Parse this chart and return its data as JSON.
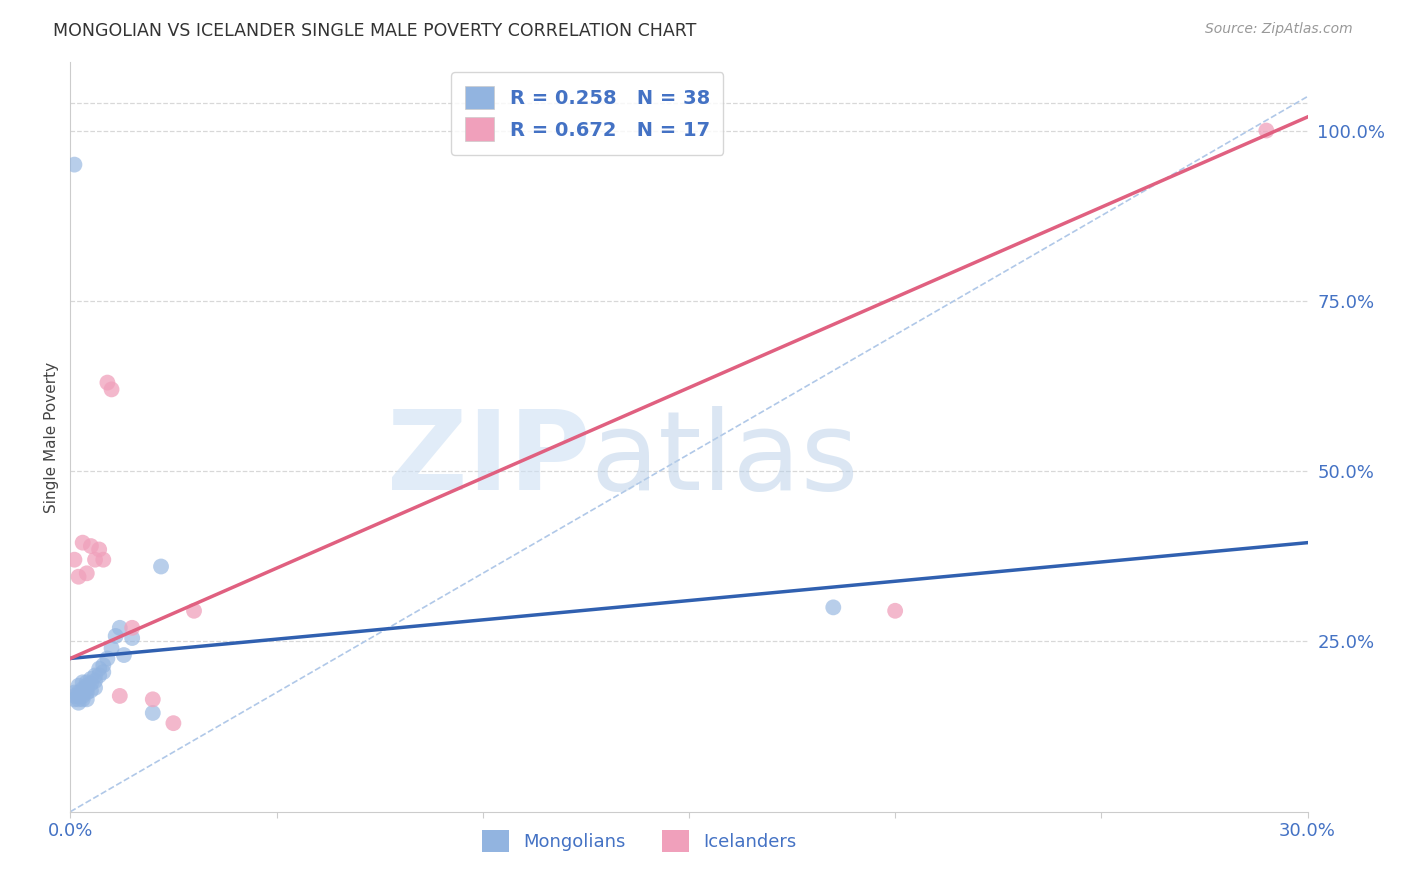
{
  "title": "MONGOLIAN VS ICELANDER SINGLE MALE POVERTY CORRELATION CHART",
  "source": "Source: ZipAtlas.com",
  "label_color": "#4472c4",
  "ylabel": "Single Male Poverty",
  "xlim": [
    0.0,
    0.3
  ],
  "ylim": [
    0.0,
    1.05
  ],
  "x_tick_pos": [
    0.0,
    0.05,
    0.1,
    0.15,
    0.2,
    0.25,
    0.3
  ],
  "x_tick_labels": [
    "0.0%",
    "",
    "",
    "",
    "",
    "",
    "30.0%"
  ],
  "y_ticks_right": [
    0.25,
    0.5,
    0.75,
    1.0
  ],
  "y_tick_labels_right": [
    "25.0%",
    "50.0%",
    "75.0%",
    "100.0%"
  ],
  "mongolian_color": "#92b4e0",
  "icelander_color": "#f0a0bb",
  "mongolian_line_color": "#3060b0",
  "icelander_line_color": "#e06080",
  "ref_line_color": "#b0c8e8",
  "grid_color": "#d8d8d8",
  "legend_R_mongolian": "0.258",
  "legend_N_mongolian": "38",
  "legend_R_icelander": "0.672",
  "legend_N_icelander": "17",
  "watermark_zip": "ZIP",
  "watermark_atlas": "atlas",
  "mongo_x": [
    0.001,
    0.001,
    0.001,
    0.002,
    0.002,
    0.002,
    0.002,
    0.002,
    0.003,
    0.003,
    0.003,
    0.003,
    0.003,
    0.004,
    0.004,
    0.004,
    0.004,
    0.004,
    0.005,
    0.005,
    0.005,
    0.006,
    0.006,
    0.006,
    0.007,
    0.007,
    0.008,
    0.008,
    0.009,
    0.01,
    0.011,
    0.012,
    0.013,
    0.015,
    0.02,
    0.022,
    0.185,
    0.001
  ],
  "mongo_y": [
    0.175,
    0.17,
    0.165,
    0.185,
    0.175,
    0.17,
    0.165,
    0.16,
    0.19,
    0.18,
    0.175,
    0.17,
    0.165,
    0.19,
    0.185,
    0.18,
    0.175,
    0.165,
    0.195,
    0.188,
    0.178,
    0.2,
    0.192,
    0.182,
    0.21,
    0.2,
    0.215,
    0.205,
    0.225,
    0.24,
    0.258,
    0.27,
    0.23,
    0.255,
    0.145,
    0.36,
    0.3,
    0.95
  ],
  "icel_x": [
    0.001,
    0.002,
    0.003,
    0.004,
    0.005,
    0.006,
    0.007,
    0.008,
    0.009,
    0.01,
    0.012,
    0.015,
    0.02,
    0.025,
    0.03,
    0.2,
    0.29
  ],
  "icel_y": [
    0.37,
    0.345,
    0.395,
    0.35,
    0.39,
    0.37,
    0.385,
    0.37,
    0.63,
    0.62,
    0.17,
    0.27,
    0.165,
    0.13,
    0.295,
    0.295,
    1.0
  ],
  "mongo_trend_x": [
    0.0,
    0.3
  ],
  "mongo_trend_y": [
    0.225,
    0.395
  ],
  "icel_trend_x": [
    0.0,
    0.3
  ],
  "icel_trend_y": [
    0.225,
    1.02
  ]
}
